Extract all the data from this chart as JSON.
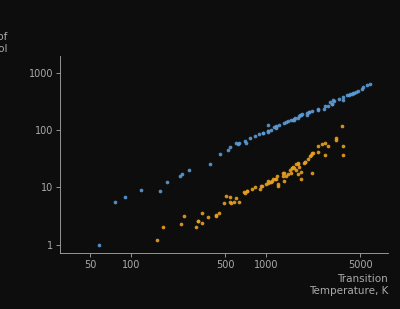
{
  "background_color": "#0d0d0d",
  "text_color": "#aaaaaa",
  "xlabel": "Transition\nTemperature, K",
  "xlim": [
    30,
    8000
  ],
  "ylim": [
    0.7,
    2000
  ],
  "boiling_color": "#5b9bd5",
  "melting_color": "#e8a020",
  "marker_size": 7,
  "boiling_data": [
    [
      58,
      1.0
    ],
    [
      77,
      5.6
    ],
    [
      90,
      6.8
    ],
    [
      120,
      9.1
    ],
    [
      165,
      8.7
    ],
    [
      185,
      12.4
    ],
    [
      231,
      15.5
    ],
    [
      239,
      17.0
    ],
    [
      272,
      20.0
    ],
    [
      385,
      26.0
    ],
    [
      460,
      38.0
    ],
    [
      520,
      45.0
    ],
    [
      545,
      51.0
    ],
    [
      600,
      60.0
    ],
    [
      620,
      56.0
    ],
    [
      630,
      59.0
    ],
    [
      702,
      65.0
    ],
    [
      718,
      60.0
    ],
    [
      765,
      72.0
    ],
    [
      832,
      80.0
    ],
    [
      890,
      85.0
    ],
    [
      958,
      89.0
    ],
    [
      958,
      90.0
    ],
    [
      1033,
      97.0
    ],
    [
      1040,
      92.0
    ],
    [
      1040,
      96.0
    ],
    [
      1040,
      121.0
    ],
    [
      1090,
      100.0
    ],
    [
      1156,
      114.0
    ],
    [
      1180,
      107.0
    ],
    [
      1180,
      115.0
    ],
    [
      1180,
      118.0
    ],
    [
      1248,
      122.0
    ],
    [
      1363,
      133.0
    ],
    [
      1420,
      141.0
    ],
    [
      1460,
      144.0
    ],
    [
      1522,
      147.0
    ],
    [
      1587,
      147.0
    ],
    [
      1615,
      151.0
    ],
    [
      1615,
      155.0
    ],
    [
      1635,
      163.0
    ],
    [
      1735,
      160.0
    ],
    [
      1750,
      177.0
    ],
    [
      1793,
      180.0
    ],
    [
      1832,
      187.0
    ],
    [
      1860,
      191.0
    ],
    [
      2000,
      200.0
    ],
    [
      2024,
      187.0
    ],
    [
      2080,
      205.0
    ],
    [
      2100,
      206.0
    ],
    [
      2204,
      214.0
    ],
    [
      2436,
      225.0
    ],
    [
      2435,
      230.0
    ],
    [
      2673,
      230.0
    ],
    [
      2740,
      260.0
    ],
    [
      2900,
      260.0
    ],
    [
      2960,
      310.0
    ],
    [
      3080,
      285.0
    ],
    [
      3100,
      290.0
    ],
    [
      3120,
      330.0
    ],
    [
      3200,
      317.0
    ],
    [
      3500,
      347.0
    ],
    [
      3695,
      340.0
    ],
    [
      3730,
      380.0
    ],
    [
      4000,
      410.0
    ],
    [
      4100,
      415.0
    ],
    [
      4200,
      420.0
    ],
    [
      4300,
      425.0
    ],
    [
      4400,
      444.0
    ],
    [
      4500,
      450.0
    ],
    [
      4600,
      460.0
    ],
    [
      4800,
      480.0
    ],
    [
      5100,
      530.0
    ],
    [
      5200,
      560.0
    ],
    [
      5560,
      610.0
    ],
    [
      5870,
      630.0
    ]
  ],
  "melting_data": [
    [
      157,
      1.2
    ],
    [
      172,
      2.0
    ],
    [
      234,
      2.3
    ],
    [
      250,
      3.2
    ],
    [
      303,
      2.0
    ],
    [
      312,
      2.6
    ],
    [
      317,
      2.6
    ],
    [
      336,
      2.4
    ],
    [
      336,
      3.5
    ],
    [
      371,
      3.0
    ],
    [
      429,
      3.2
    ],
    [
      430,
      3.3
    ],
    [
      453,
      3.5
    ],
    [
      494,
      5.3
    ],
    [
      505,
      7.0
    ],
    [
      544,
      6.7
    ],
    [
      545,
      5.5
    ],
    [
      553,
      5.3
    ],
    [
      577,
      5.6
    ],
    [
      600,
      6.5
    ],
    [
      630,
      5.5
    ],
    [
      693,
      8.2
    ],
    [
      700,
      7.8
    ],
    [
      723,
      8.5
    ],
    [
      730,
      8.6
    ],
    [
      786,
      9.2
    ],
    [
      826,
      10.0
    ],
    [
      904,
      9.5
    ],
    [
      924,
      10.6
    ],
    [
      933,
      10.7
    ],
    [
      1000,
      11.4
    ],
    [
      1040,
      12.1
    ],
    [
      1042,
      13.1
    ],
    [
      1074,
      12.5
    ],
    [
      1100,
      12.5
    ],
    [
      1115,
      13.0
    ],
    [
      1132,
      14.0
    ],
    [
      1170,
      14.2
    ],
    [
      1193,
      13.9
    ],
    [
      1211,
      15.5
    ],
    [
      1234,
      11.3
    ],
    [
      1235,
      10.5
    ],
    [
      1336,
      17.6
    ],
    [
      1337,
      16.0
    ],
    [
      1355,
      13.0
    ],
    [
      1357,
      17.5
    ],
    [
      1407,
      15.5
    ],
    [
      1449,
      17.4
    ],
    [
      1519,
      19.9
    ],
    [
      1522,
      18.0
    ],
    [
      1550,
      22.0
    ],
    [
      1560,
      21.4
    ],
    [
      1600,
      23.0
    ],
    [
      1623,
      22.0
    ],
    [
      1665,
      20.4
    ],
    [
      1680,
      25.5
    ],
    [
      1726,
      26.7
    ],
    [
      1728,
      17.2
    ],
    [
      1728,
      26.0
    ],
    [
      1768,
      22.2
    ],
    [
      1811,
      13.8
    ],
    [
      1825,
      18.4
    ],
    [
      1900,
      27.0
    ],
    [
      1933,
      28.0
    ],
    [
      1943,
      28.0
    ],
    [
      2043,
      31.8
    ],
    [
      2128,
      35.0
    ],
    [
      2150,
      36.0
    ],
    [
      2180,
      40.0
    ],
    [
      2183,
      17.6
    ],
    [
      2233,
      39.7
    ],
    [
      2430,
      41.0
    ],
    [
      2440,
      51.8
    ],
    [
      2607,
      58.0
    ],
    [
      2750,
      36.0
    ],
    [
      2750,
      60.0
    ],
    [
      2890,
      52.3
    ],
    [
      3290,
      66.5
    ],
    [
      3290,
      72.0
    ],
    [
      3680,
      120.0
    ],
    [
      3695,
      36.0
    ],
    [
      3695,
      52.0
    ]
  ]
}
